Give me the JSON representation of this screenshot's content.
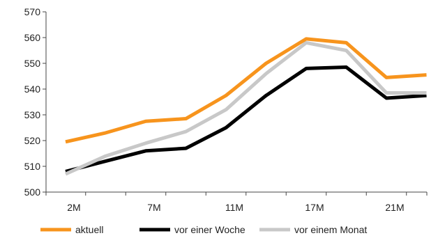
{
  "chart_data": {
    "type": "line",
    "x": [
      "2M",
      "",
      "7M",
      "",
      "11M",
      "",
      "17M",
      "",
      "21M",
      ""
    ],
    "xtick_labels": [
      "2M",
      "7M",
      "11M",
      "17M",
      "21M"
    ],
    "ylim": [
      500,
      570
    ],
    "yticks": [
      500,
      510,
      520,
      530,
      540,
      550,
      560,
      570
    ],
    "ytick_labels": [
      "500",
      "510",
      "520",
      "530",
      "540",
      "550",
      "560",
      "570"
    ],
    "grid": false,
    "legend_position": "bottom",
    "series": [
      {
        "name": "aktuell",
        "color": "#f7941d",
        "values": [
          519.5,
          523,
          527.5,
          528.5,
          537.5,
          550,
          559.5,
          558,
          544.5,
          545.5
        ]
      },
      {
        "name": "vor einer Woche",
        "color": "#000000",
        "values": [
          508,
          512,
          516,
          517,
          525,
          537.5,
          548,
          548.5,
          536.5,
          537.5
        ]
      },
      {
        "name": "vor einem Monat",
        "color": "#c8c8c8",
        "values": [
          507,
          514,
          519,
          523.5,
          532,
          546,
          558,
          555,
          538.5,
          538.5
        ]
      }
    ]
  }
}
